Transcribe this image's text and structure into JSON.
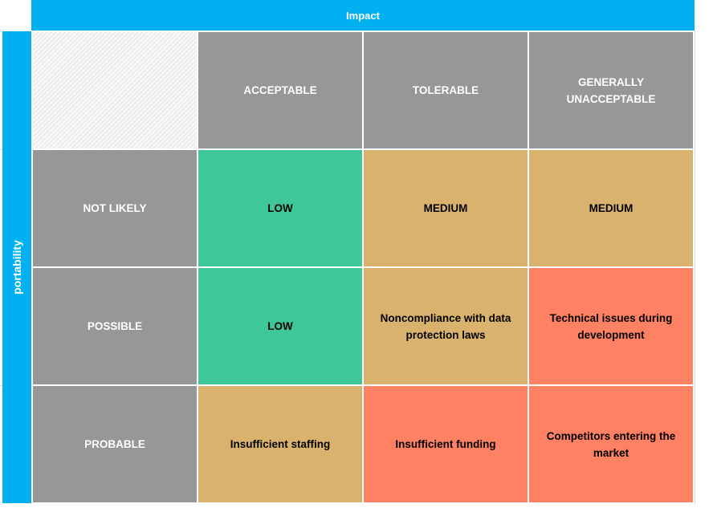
{
  "header": {
    "impact_label": "Impact"
  },
  "side": {
    "portability_label": "portability"
  },
  "columns": [
    "ACCEPTABLE",
    "TOLERABLE",
    "GENERALLY UNACCEPTABLE"
  ],
  "rows": [
    {
      "label": "NOT LIKELY",
      "cells": [
        "LOW",
        "MEDIUM",
        "MEDIUM"
      ]
    },
    {
      "label": "POSSIBLE",
      "cells": [
        "LOW",
        "Noncompliance with data protection laws",
        "Technical issues during development"
      ]
    },
    {
      "label": "PROBABLE",
      "cells": [
        "Insufficient staffing",
        "Insufficient funding",
        "Competitors entering the market"
      ]
    }
  ],
  "colors": {
    "accent": "#00b0f0",
    "header_gray": "#979797",
    "low": "#3fc897",
    "medium": "#d9b36e",
    "high": "#fe8164"
  }
}
